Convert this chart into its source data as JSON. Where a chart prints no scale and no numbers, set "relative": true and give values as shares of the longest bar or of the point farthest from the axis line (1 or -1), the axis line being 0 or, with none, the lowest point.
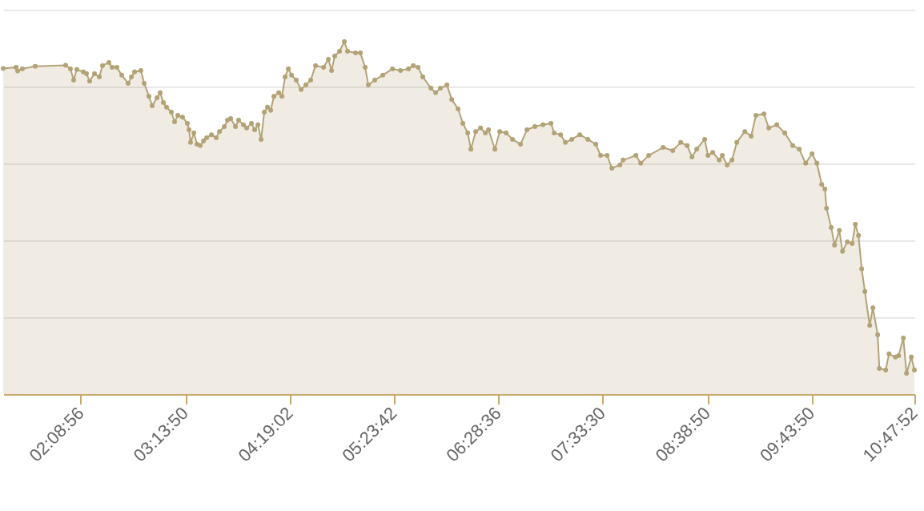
{
  "chart_data": {
    "type": "area",
    "relative": true,
    "grid": "y",
    "marker": "circle",
    "tick_labels": "x",
    "xlim": [
      1.343,
      10.79778
    ],
    "xticks": [
      {
        "value": 2.14889,
        "label": "02:08:56"
      },
      {
        "value": 3.23056,
        "label": "03:13:50"
      },
      {
        "value": 4.31722,
        "label": "04:19:02"
      },
      {
        "value": 5.395,
        "label": "05:23:42"
      },
      {
        "value": 6.47667,
        "label": "06:28:36"
      },
      {
        "value": 7.55833,
        "label": "07:33:30"
      },
      {
        "value": 8.64722,
        "label": "08:38:50"
      },
      {
        "value": 9.73056,
        "label": "09:43:50"
      },
      {
        "value": 10.79778,
        "label": "10:47:52"
      }
    ],
    "x": [
      1.343,
      1.476,
      1.493,
      1.542,
      1.675,
      1.991,
      2.041,
      2.074,
      2.107,
      2.174,
      2.207,
      2.24,
      2.29,
      2.34,
      2.373,
      2.44,
      2.473,
      2.523,
      2.573,
      2.639,
      2.673,
      2.706,
      2.772,
      2.806,
      2.855,
      2.889,
      2.939,
      2.972,
      3.005,
      3.038,
      3.088,
      3.121,
      3.155,
      3.204,
      3.254,
      3.271,
      3.287,
      3.321,
      3.354,
      3.387,
      3.421,
      3.454,
      3.504,
      3.553,
      3.587,
      3.637,
      3.67,
      3.703,
      3.753,
      3.786,
      3.836,
      3.869,
      3.919,
      3.952,
      3.986,
      4.019,
      4.052,
      4.085,
      4.119,
      4.152,
      4.202,
      4.235,
      4.268,
      4.301,
      4.335,
      4.384,
      4.434,
      4.484,
      4.534,
      4.584,
      4.667,
      4.717,
      4.75,
      4.783,
      4.833,
      4.883,
      4.916,
      4.999,
      5.049,
      5.099,
      5.132,
      5.199,
      5.282,
      5.382,
      5.465,
      5.548,
      5.598,
      5.648,
      5.697,
      5.781,
      5.83,
      5.88,
      5.947,
      5.997,
      6.063,
      6.113,
      6.163,
      6.196,
      6.246,
      6.296,
      6.346,
      6.379,
      6.445,
      6.495,
      6.562,
      6.628,
      6.711,
      6.778,
      6.861,
      6.944,
      7.027,
      7.06,
      7.127,
      7.176,
      7.243,
      7.326,
      7.409,
      7.492,
      7.542,
      7.609,
      7.659,
      7.742,
      7.775,
      7.908,
      7.958,
      8.041,
      8.19,
      8.29,
      8.373,
      8.44,
      8.49,
      8.539,
      8.622,
      8.656,
      8.705,
      8.772,
      8.805,
      8.855,
      8.905,
      8.955,
      9.038,
      9.104,
      9.154,
      9.237,
      9.287,
      9.37,
      9.453,
      9.536,
      9.603,
      9.669,
      9.736,
      9.786,
      9.836,
      9.869,
      9.886,
      9.935,
      9.969,
      10.019,
      10.052,
      10.102,
      10.152,
      10.185,
      10.218,
      10.251,
      10.284,
      10.334,
      10.367,
      10.417,
      10.434,
      10.5,
      10.534,
      10.6,
      10.634,
      10.683,
      10.716,
      10.766,
      10.79778
    ],
    "series": [
      {
        "color": "#b3a275",
        "values": [
          0.924,
          0.927,
          0.917,
          0.923,
          0.93,
          0.933,
          0.923,
          0.891,
          0.921,
          0.914,
          0.909,
          0.888,
          0.909,
          0.9,
          0.932,
          0.941,
          0.927,
          0.927,
          0.905,
          0.882,
          0.9,
          0.914,
          0.918,
          0.882,
          0.845,
          0.818,
          0.841,
          0.855,
          0.827,
          0.814,
          0.8,
          0.773,
          0.791,
          0.786,
          0.768,
          0.75,
          0.714,
          0.741,
          0.709,
          0.705,
          0.718,
          0.727,
          0.736,
          0.727,
          0.745,
          0.759,
          0.777,
          0.782,
          0.759,
          0.777,
          0.764,
          0.755,
          0.768,
          0.75,
          0.764,
          0.723,
          0.8,
          0.814,
          0.805,
          0.845,
          0.855,
          0.845,
          0.9,
          0.923,
          0.905,
          0.891,
          0.864,
          0.877,
          0.891,
          0.932,
          0.927,
          0.95,
          0.918,
          0.959,
          0.973,
          1,
          0.973,
          0.968,
          0.968,
          0.927,
          0.877,
          0.891,
          0.905,
          0.923,
          0.918,
          0.923,
          0.932,
          0.927,
          0.9,
          0.868,
          0.855,
          0.868,
          0.877,
          0.836,
          0.809,
          0.768,
          0.741,
          0.695,
          0.745,
          0.755,
          0.741,
          0.75,
          0.695,
          0.745,
          0.741,
          0.723,
          0.709,
          0.75,
          0.759,
          0.764,
          0.768,
          0.741,
          0.736,
          0.714,
          0.723,
          0.736,
          0.723,
          0.709,
          0.677,
          0.677,
          0.641,
          0.65,
          0.664,
          0.677,
          0.655,
          0.677,
          0.7,
          0.691,
          0.714,
          0.705,
          0.673,
          0.695,
          0.723,
          0.677,
          0.686,
          0.664,
          0.677,
          0.65,
          0.664,
          0.714,
          0.745,
          0.732,
          0.791,
          0.795,
          0.755,
          0.764,
          0.741,
          0.705,
          0.695,
          0.655,
          0.682,
          0.655,
          0.595,
          0.582,
          0.527,
          0.473,
          0.423,
          0.464,
          0.405,
          0.432,
          0.427,
          0.482,
          0.45,
          0.355,
          0.291,
          0.195,
          0.245,
          0.168,
          0.073,
          0.068,
          0.114,
          0.105,
          0.109,
          0.159,
          0.059,
          0.105,
          0.068
        ]
      }
    ]
  }
}
